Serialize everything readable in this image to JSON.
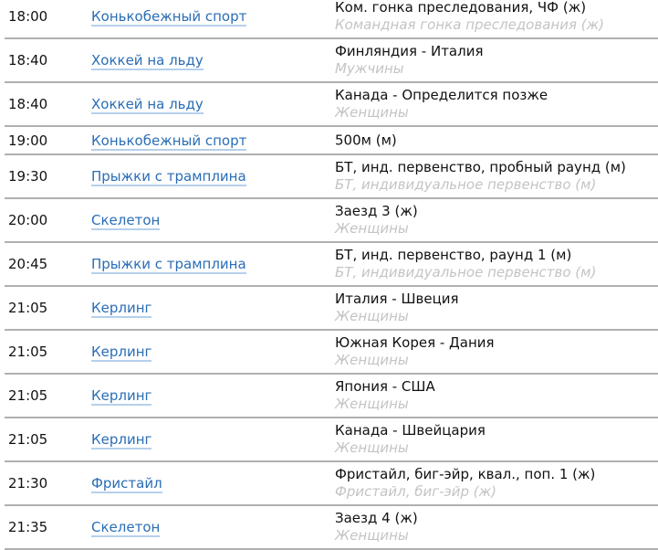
{
  "colors": {
    "link": "#2a6db5",
    "subtitle": "#c4c4c4",
    "separator": "#b0b0b0"
  },
  "rows": [
    {
      "time": "18:00",
      "sport": "Конькобежный спорт",
      "event": "Ком. гонка преследования, ЧФ (ж)",
      "sub": "Командная гонка преследования (ж)"
    },
    {
      "time": "18:40",
      "sport": "Хоккей на льду",
      "event": "Финляндия - Италия",
      "sub": "Мужчины"
    },
    {
      "time": "18:40",
      "sport": "Хоккей на льду",
      "event": "Канада - Определится позже",
      "sub": "Женщины"
    },
    {
      "time": "19:00",
      "sport": "Конькобежный спорт",
      "event": "500м (м)",
      "sub": ""
    },
    {
      "time": "19:30",
      "sport": "Прыжки с трамплина",
      "event": "БТ, инд. первенство, пробный раунд (м)",
      "sub": "БТ, индивидуальное первенство (м)"
    },
    {
      "time": "20:00",
      "sport": "Скелетон",
      "event": "Заезд 3 (ж)",
      "sub": "Женщины"
    },
    {
      "time": "20:45",
      "sport": "Прыжки с трамплина",
      "event": "БТ, инд. первенство, раунд 1 (м)",
      "sub": "БТ, индивидуальное первенство (м)"
    },
    {
      "time": "21:05",
      "sport": "Керлинг",
      "event": "Италия - Швеция",
      "sub": "Женщины"
    },
    {
      "time": "21:05",
      "sport": "Керлинг",
      "event": "Южная Корея - Дания",
      "sub": "Женщины"
    },
    {
      "time": "21:05",
      "sport": "Керлинг",
      "event": "Япония - США",
      "sub": "Женщины"
    },
    {
      "time": "21:05",
      "sport": "Керлинг",
      "event": "Канада - Швейцария",
      "sub": "Женщины"
    },
    {
      "time": "21:30",
      "sport": "Фристайл",
      "event": "Фристайл, биг-эйр, квал., поп. 1 (ж)",
      "sub": "Фристайл, биг-эйр (ж)"
    },
    {
      "time": "21:35",
      "sport": "Скелетон",
      "event": "Заезд 4 (ж)",
      "sub": "Женщины"
    }
  ]
}
